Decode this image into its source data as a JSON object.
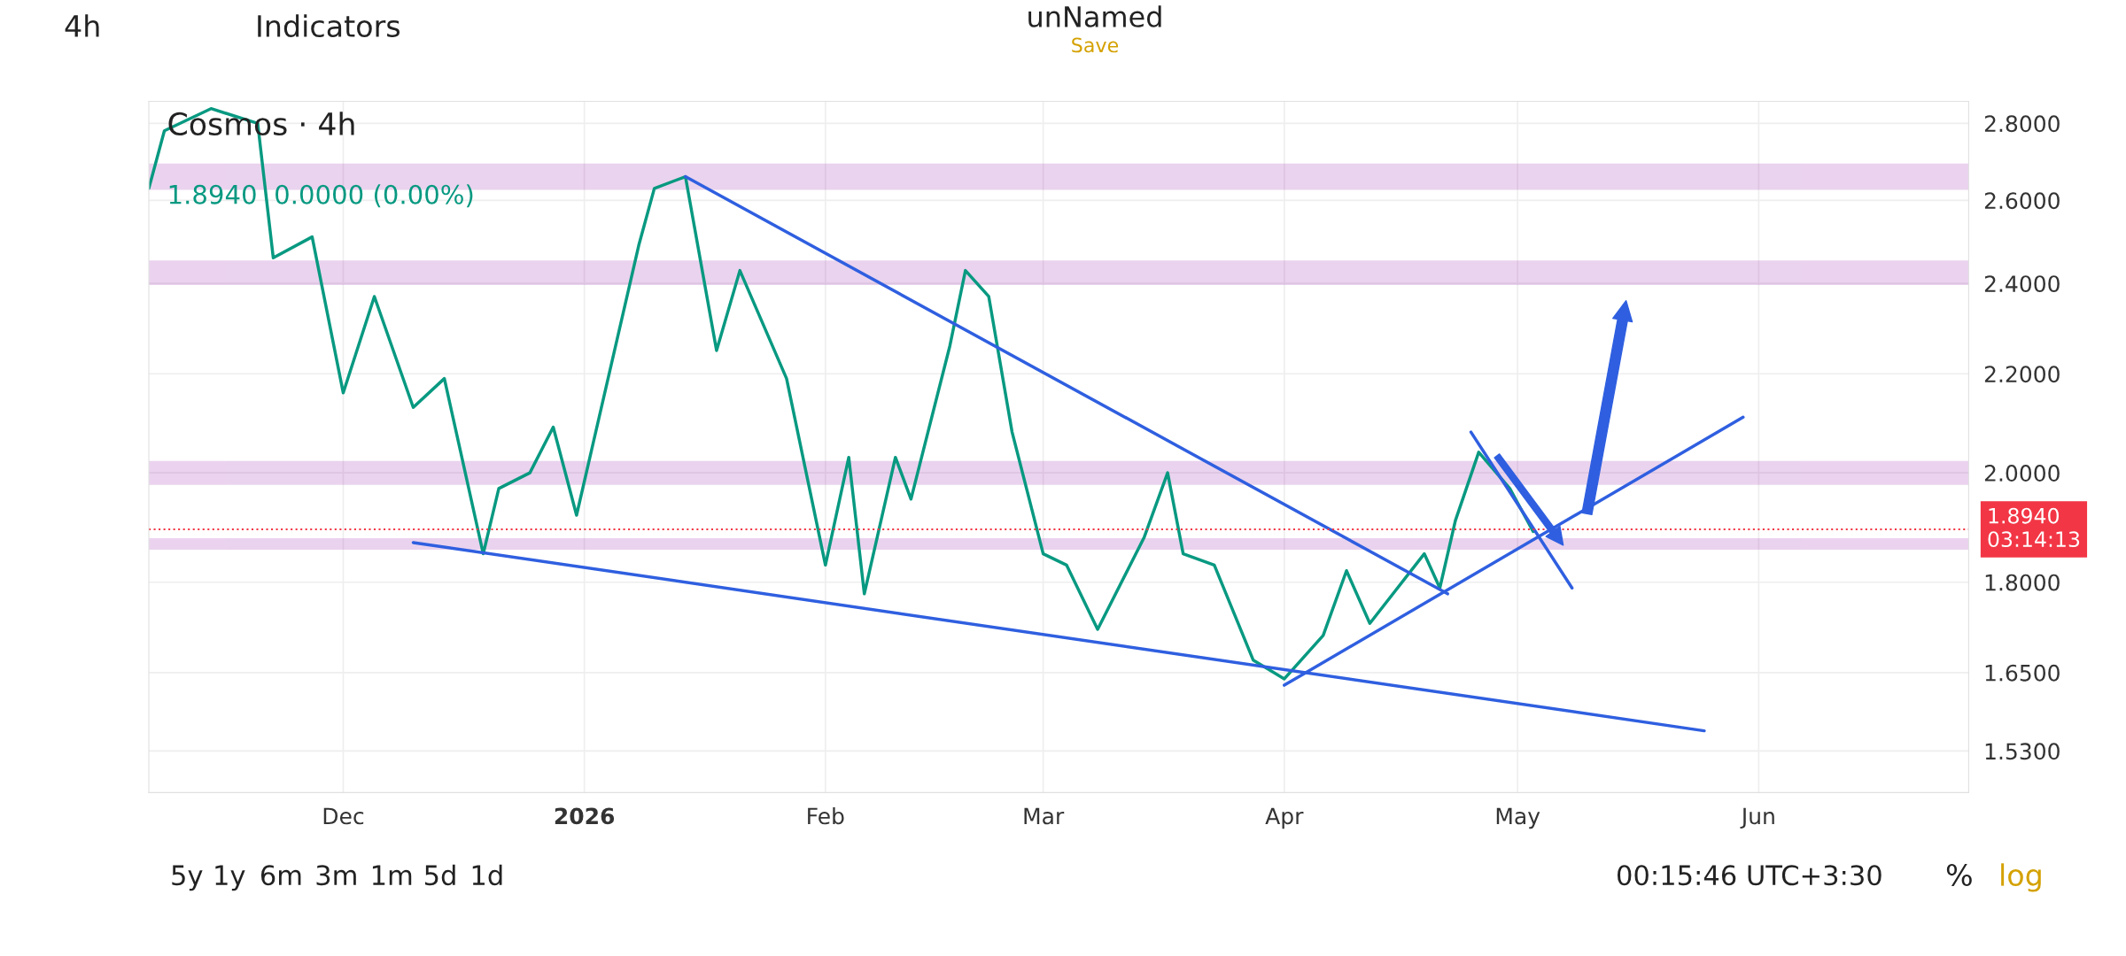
{
  "chart_data": {
    "type": "line",
    "title": "Cosmos · 4h",
    "series": [
      {
        "color": "#089981",
        "x": [
          "2025-11-06",
          "2025-11-08",
          "2025-11-14",
          "2025-11-20",
          "2025-11-22",
          "2025-11-27",
          "2025-12-01",
          "2025-12-05",
          "2025-12-10",
          "2025-12-14",
          "2025-12-19",
          "2025-12-21",
          "2025-12-25",
          "2025-12-28",
          "2025-12-31",
          "2026-01-08",
          "2026-01-10",
          "2026-01-14",
          "2026-01-18",
          "2026-01-21",
          "2026-01-27",
          "2026-02-01",
          "2026-02-04",
          "2026-02-06",
          "2026-02-10",
          "2026-02-12",
          "2026-02-17",
          "2026-02-19",
          "2026-02-22",
          "2026-02-25",
          "2026-03-01",
          "2026-03-04",
          "2026-03-08",
          "2026-03-14",
          "2026-03-17",
          "2026-03-19",
          "2026-03-23",
          "2026-03-28",
          "2026-04-01",
          "2026-04-06",
          "2026-04-09",
          "2026-04-12",
          "2026-04-19",
          "2026-04-21",
          "2026-04-23",
          "2026-04-26",
          "2026-04-30",
          "2026-05-03"
        ],
        "values": [
          2.63,
          2.78,
          2.84,
          2.8,
          2.46,
          2.51,
          2.16,
          2.37,
          2.13,
          2.19,
          1.85,
          1.97,
          2.0,
          2.09,
          1.92,
          2.49,
          2.63,
          2.66,
          2.25,
          2.43,
          2.19,
          1.83,
          2.03,
          1.78,
          2.03,
          1.95,
          2.26,
          2.43,
          2.37,
          2.08,
          1.85,
          1.83,
          1.72,
          1.88,
          2.0,
          1.85,
          1.83,
          1.67,
          1.64,
          1.71,
          1.82,
          1.73,
          1.85,
          1.79,
          1.91,
          2.04,
          1.97,
          1.89
        ]
      },
      {
        "color": "#2f5fe0",
        "x": [
          "2026-01-14",
          "2026-04-22"
        ],
        "values": [
          2.66,
          1.78
        ]
      },
      {
        "color": "#2f5fe0",
        "x": [
          "2025-12-10",
          "2026-05-25"
        ],
        "values": [
          1.87,
          1.56
        ]
      },
      {
        "color": "#2f5fe0",
        "x": [
          "2026-04-01",
          "2026-05-30"
        ],
        "values": [
          1.63,
          2.11
        ]
      },
      {
        "color": "#2f5fe0",
        "x": [
          "2026-04-25",
          "2026-05-08"
        ],
        "values": [
          2.08,
          1.79
        ]
      }
    ],
    "xlim": [
      "2025-11-06",
      "2026-06-28"
    ],
    "xticks": [
      {
        "value": "2025-12-01",
        "label": "Dec"
      },
      {
        "value": "2026-01-01",
        "label": "2026"
      },
      {
        "value": "2026-02-01",
        "label": "Feb"
      },
      {
        "value": "2026-03-01",
        "label": "Mar"
      },
      {
        "value": "2026-04-01",
        "label": "Apr"
      },
      {
        "value": "2026-05-01",
        "label": "May"
      },
      {
        "value": "2026-06-01",
        "label": "Jun"
      }
    ],
    "log": true,
    "ylim": [
      1.47,
      2.86
    ],
    "yticks": [
      {
        "value": 1.53,
        "label": "1.5300"
      },
      {
        "value": 1.65,
        "label": "1.6500"
      },
      {
        "value": 1.8,
        "label": "1.8000"
      },
      {
        "value": 2.0,
        "label": "2.0000"
      },
      {
        "value": 2.2,
        "label": "2.2000"
      },
      {
        "value": 2.4,
        "label": "2.4000"
      },
      {
        "value": 2.6,
        "label": "2.6000"
      },
      {
        "value": 2.8,
        "label": "2.8000"
      }
    ],
    "grid": true,
    "ref_lines": [
      {
        "axis": "y",
        "value": 1.894,
        "label": "1.8940\n03:14:13",
        "color": "#f23645",
        "line_style": "dotted"
      }
    ],
    "bands": [
      {
        "axis": "y",
        "from": 2.63,
        "to": 2.69,
        "color": "#9c27b0"
      },
      {
        "axis": "y",
        "from": 2.4,
        "to": 2.45,
        "color": "#9c27b0"
      },
      {
        "axis": "y",
        "from": 1.98,
        "to": 2.02,
        "color": "#9c27b0"
      },
      {
        "axis": "y",
        "from": 1.86,
        "to": 1.875,
        "color": "#9c27b0"
      }
    ],
    "annotations": [
      "4h",
      "Indicators",
      "unNamed",
      "Save",
      "1.8940  0.0000 (0.00%)",
      "5y",
      "1y",
      "6m",
      "3m",
      "1m",
      "5d",
      "1d",
      "00:15:46 UTC+3:30",
      "%",
      "log"
    ]
  }
}
